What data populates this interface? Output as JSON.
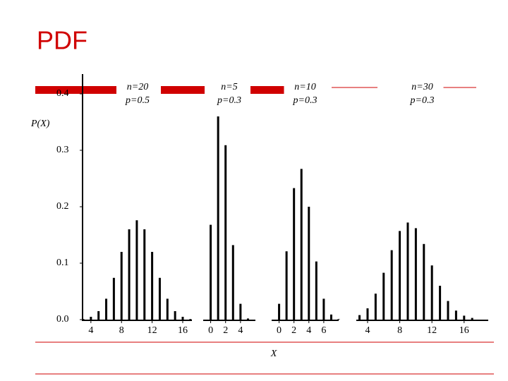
{
  "title": "PDF",
  "chart_data": [
    {
      "type": "bar",
      "annotations": [
        "n=20",
        "p=0.5"
      ],
      "ylabel": "P(X)",
      "x": [
        3,
        4,
        5,
        6,
        7,
        8,
        9,
        10,
        11,
        12,
        13,
        14,
        15,
        16,
        17
      ],
      "values": [
        0.001,
        0.005,
        0.015,
        0.037,
        0.074,
        0.12,
        0.16,
        0.176,
        0.16,
        0.12,
        0.074,
        0.037,
        0.015,
        0.005,
        0.001
      ],
      "color": "#000000",
      "xlim": [
        3,
        17.2
      ],
      "xticks": [
        4,
        8,
        12,
        16
      ],
      "ylim": [
        0,
        0.44
      ],
      "yticks": [
        {
          "value": 0,
          "label": "0.0"
        },
        0.1,
        0.2,
        0.3,
        0.4
      ]
    },
    {
      "type": "bar",
      "annotations": [
        "n=5",
        "p=0.3"
      ],
      "x": [
        0,
        1,
        2,
        3,
        4,
        5
      ],
      "values": [
        0.168,
        0.36,
        0.309,
        0.132,
        0.028,
        0.002
      ],
      "color": "#000000",
      "xlim": [
        -1,
        6
      ],
      "xticks": [
        0,
        2,
        4
      ],
      "ylim": [
        0,
        0.44
      ]
    },
    {
      "type": "bar",
      "annotations": [
        "n=10",
        "p=0.3"
      ],
      "xlabel": "X",
      "x": [
        0,
        1,
        2,
        3,
        4,
        5,
        6,
        7,
        8
      ],
      "values": [
        0.028,
        0.121,
        0.233,
        0.267,
        0.2,
        0.103,
        0.037,
        0.009,
        0.001
      ],
      "color": "#000000",
      "xlim": [
        -1,
        8
      ],
      "xticks": [
        0,
        2,
        4,
        6
      ],
      "ylim": [
        0,
        0.44
      ]
    },
    {
      "type": "bar",
      "annotations": [
        "n=30",
        "p=0.3"
      ],
      "x": [
        3,
        4,
        5,
        6,
        7,
        8,
        9,
        10,
        11,
        12,
        13,
        14,
        15,
        16,
        17
      ],
      "values": [
        0.008,
        0.02,
        0.046,
        0.083,
        0.123,
        0.157,
        0.172,
        0.162,
        0.134,
        0.096,
        0.06,
        0.033,
        0.016,
        0.007,
        0.003
      ],
      "color": "#000000",
      "xlim": [
        2.6,
        19
      ],
      "xticks": [
        4,
        8,
        12,
        16
      ],
      "ylim": [
        0,
        0.44
      ]
    }
  ]
}
